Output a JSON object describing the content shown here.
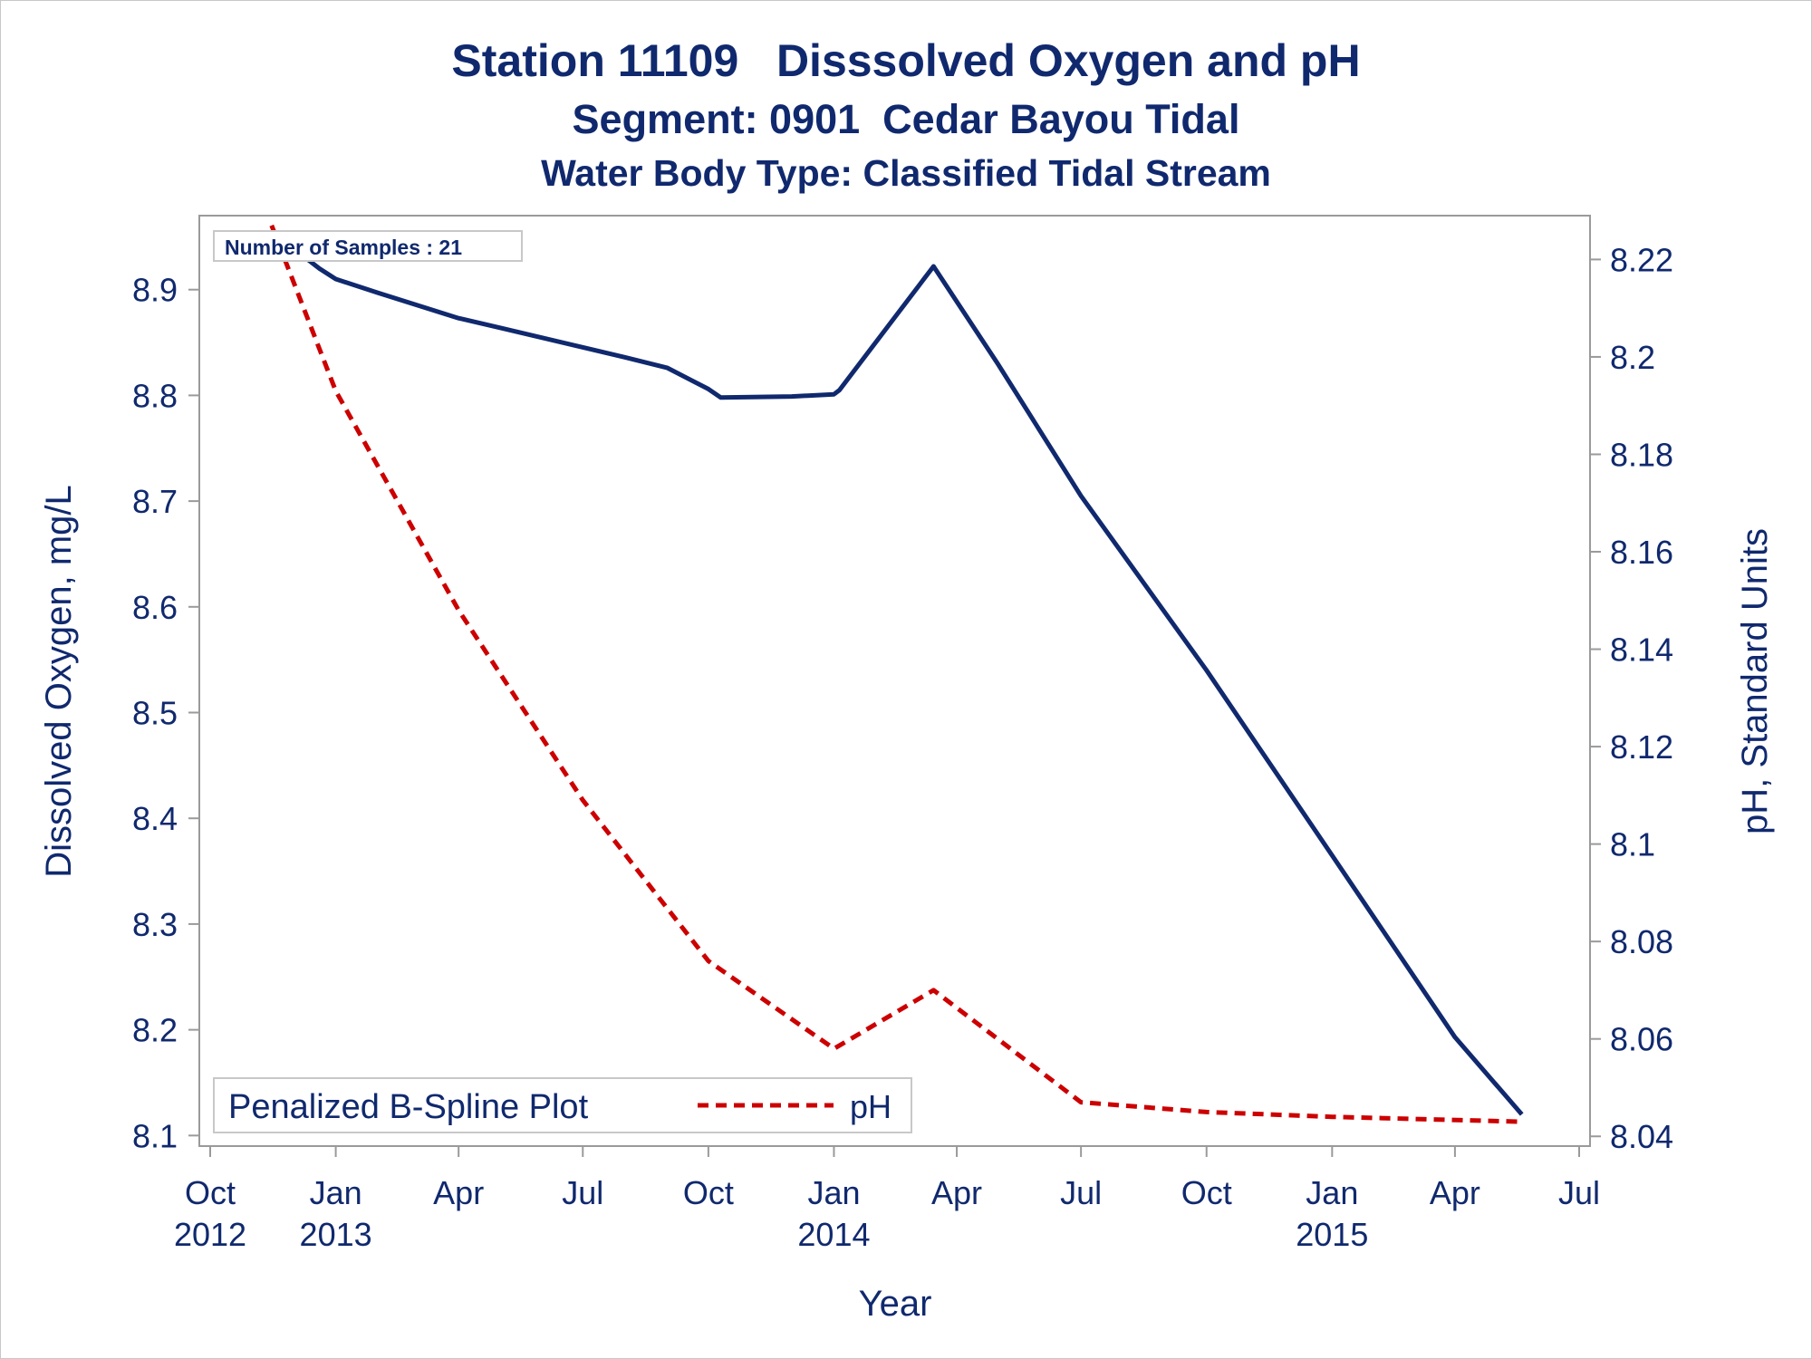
{
  "titles": {
    "line1": "Station 11109   Disssolved Oxygen and pH",
    "line2": "Segment: 0901  Cedar Bayou Tidal",
    "line3": "Water Body Type: Classified Tidal Stream"
  },
  "colors": {
    "do_line": "#10296e",
    "ph_line": "#cc0000",
    "text": "#10296e",
    "axis": "#9a9a9a"
  },
  "chart_data": {
    "type": "line",
    "xlabel": "Year",
    "ylabel_left": "Dissolved Oxygen, mg/L",
    "ylabel_right": "pH, Standard Units",
    "xlim": [
      "2012-10-01",
      "2015-07-01"
    ],
    "ylim_left": [
      8.09,
      8.97
    ],
    "ylim_right": [
      8.038,
      8.229
    ],
    "x_ticks": [
      {
        "date": "2012-10-01",
        "month": "Oct",
        "year": "2012"
      },
      {
        "date": "2013-01-01",
        "month": "Jan",
        "year": "2013"
      },
      {
        "date": "2013-04-01",
        "month": "Apr",
        "year": ""
      },
      {
        "date": "2013-07-01",
        "month": "Jul",
        "year": ""
      },
      {
        "date": "2013-10-01",
        "month": "Oct",
        "year": ""
      },
      {
        "date": "2014-01-01",
        "month": "Jan",
        "year": "2014"
      },
      {
        "date": "2014-04-01",
        "month": "Apr",
        "year": ""
      },
      {
        "date": "2014-07-01",
        "month": "Jul",
        "year": ""
      },
      {
        "date": "2014-10-01",
        "month": "Oct",
        "year": ""
      },
      {
        "date": "2015-01-01",
        "month": "Jan",
        "year": "2015"
      },
      {
        "date": "2015-04-01",
        "month": "Apr",
        "year": ""
      },
      {
        "date": "2015-07-01",
        "month": "Jul",
        "year": ""
      }
    ],
    "y_ticks_left": [
      8.1,
      8.2,
      8.3,
      8.4,
      8.5,
      8.6,
      8.7,
      8.8,
      8.9
    ],
    "y_ticks_left_labels": [
      "8.1",
      "8.2",
      "8.3",
      "8.4",
      "8.5",
      "8.6",
      "8.7",
      "8.8",
      "8.9"
    ],
    "y_ticks_right": [
      8.04,
      8.06,
      8.08,
      8.1,
      8.12,
      8.14,
      8.16,
      8.18,
      8.2,
      8.22
    ],
    "y_ticks_right_labels": [
      "8.04",
      "8.06",
      "8.08",
      "8.1",
      "8.12",
      "8.14",
      "8.16",
      "8.18",
      "8.2",
      "8.22"
    ],
    "series": [
      {
        "name": "",
        "axis": "left",
        "style": "solid",
        "x": [
          "2012-11-15",
          "2012-12-20",
          "2013-01-01",
          "2013-02-01",
          "2013-04-01",
          "2013-05-01",
          "2013-08-01",
          "2013-09-01",
          "2013-10-01",
          "2013-10-10",
          "2013-12-01",
          "2014-01-01",
          "2014-01-05",
          "2014-03-15",
          "2014-05-01",
          "2014-07-01",
          "2014-10-01",
          "2015-01-01",
          "2015-04-01",
          "2015-05-20"
        ],
        "values": [
          8.955,
          8.92,
          8.91,
          8.897,
          8.873,
          8.864,
          8.836,
          8.826,
          8.806,
          8.798,
          8.799,
          8.801,
          8.805,
          8.922,
          8.83,
          8.705,
          8.54,
          8.365,
          8.193,
          8.12
        ]
      },
      {
        "name": "pH",
        "axis": "right",
        "style": "dashed",
        "x": [
          "2012-11-15",
          "2013-01-01",
          "2013-04-01",
          "2013-07-01",
          "2013-10-01",
          "2014-01-01",
          "2014-03-15",
          "2014-07-01",
          "2014-10-01",
          "2015-01-01",
          "2015-05-20"
        ],
        "values": [
          8.227,
          8.193,
          8.148,
          8.109,
          8.076,
          8.058,
          8.07,
          8.047,
          8.045,
          8.044,
          8.043
        ]
      }
    ],
    "legend": {
      "title": "Penalized B-Spline Plot",
      "placement": "bottom-left",
      "entries": [
        "pH"
      ]
    },
    "annotation": "Number of Samples : 21",
    "grid": false
  }
}
